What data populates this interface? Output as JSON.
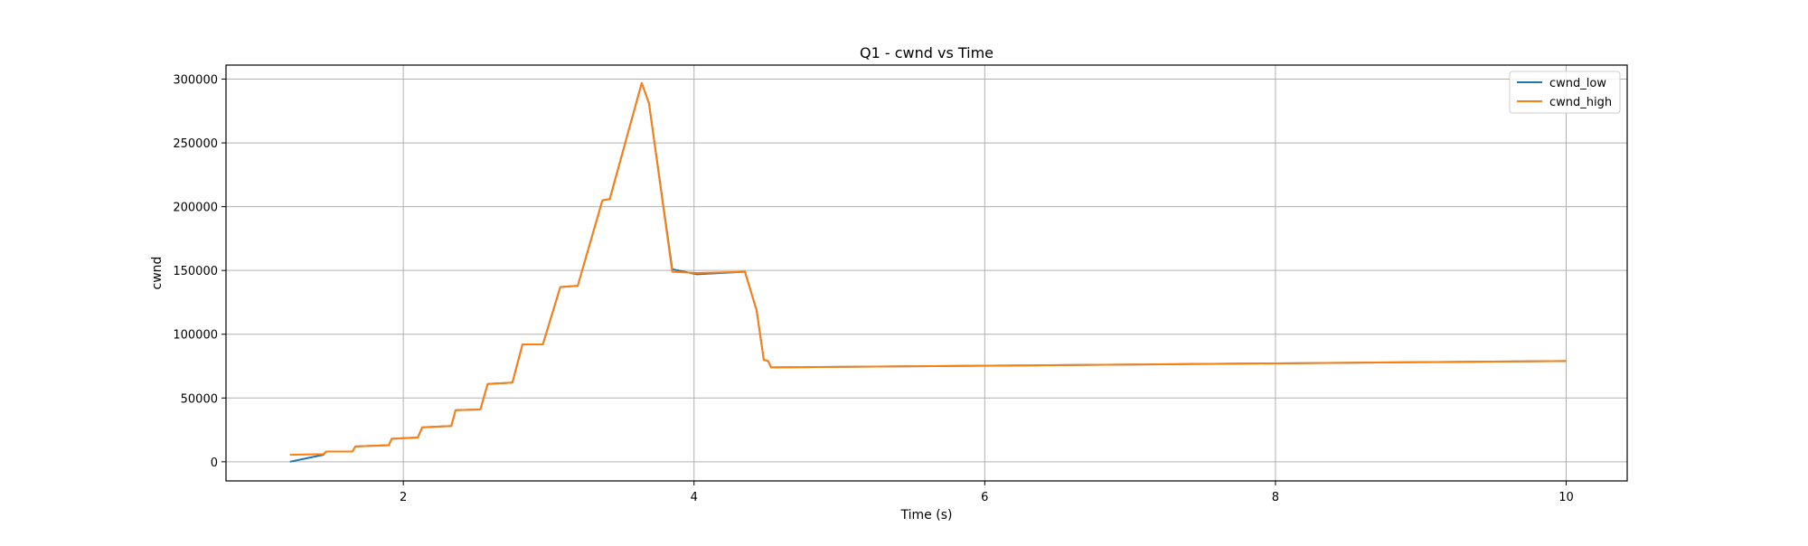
{
  "chart_data": {
    "type": "line",
    "title": "Q1 - cwnd vs Time",
    "xlabel": "Time (s)",
    "ylabel": "cwnd",
    "xlim": [
      0.78,
      10.42
    ],
    "ylim": [
      -15000,
      311000
    ],
    "xticks": [
      2,
      4,
      6,
      8,
      10
    ],
    "xtick_labels": [
      "2",
      "4",
      "6",
      "8",
      "10"
    ],
    "yticks": [
      0,
      50000,
      100000,
      150000,
      200000,
      250000,
      300000
    ],
    "ytick_labels": [
      "0",
      "50000",
      "100000",
      "150000",
      "200000",
      "250000",
      "300000"
    ],
    "grid": true,
    "legend_position": "top-right",
    "series": [
      {
        "name": "cwnd_low",
        "color": "#1f77b4",
        "x": [
          1.22,
          1.45,
          1.47,
          1.65,
          1.67,
          1.9,
          1.92,
          2.1,
          2.13,
          2.33,
          2.36,
          2.53,
          2.58,
          2.75,
          2.82,
          2.96,
          3.08,
          3.2,
          3.37,
          3.42,
          3.64,
          3.69,
          3.85,
          4.02,
          4.35,
          4.43,
          4.48,
          4.51,
          4.53,
          10.0
        ],
        "y": [
          0,
          5500,
          8000,
          8000,
          12000,
          13000,
          18000,
          19000,
          27000,
          28000,
          40500,
          41000,
          61000,
          62000,
          92000,
          92000,
          137000,
          138000,
          205000,
          206000,
          297000,
          281000,
          151000,
          147000,
          149000,
          119000,
          80000,
          79000,
          74000,
          79000
        ]
      },
      {
        "name": "cwnd_high",
        "color": "#ff7f0e",
        "x": [
          1.22,
          1.45,
          1.47,
          1.65,
          1.67,
          1.9,
          1.92,
          2.1,
          2.13,
          2.33,
          2.36,
          2.53,
          2.58,
          2.75,
          2.82,
          2.96,
          3.08,
          3.2,
          3.37,
          3.42,
          3.64,
          3.69,
          3.85,
          4.02,
          4.35,
          4.43,
          4.48,
          4.51,
          4.53,
          10.0
        ],
        "y": [
          5500,
          6000,
          8000,
          8000,
          12000,
          13000,
          18000,
          19000,
          27000,
          28000,
          40500,
          41000,
          61000,
          62000,
          92000,
          92000,
          137000,
          138000,
          205000,
          206000,
          297000,
          281000,
          149000,
          148000,
          149000,
          119000,
          80000,
          79000,
          74000,
          79000
        ]
      }
    ]
  }
}
